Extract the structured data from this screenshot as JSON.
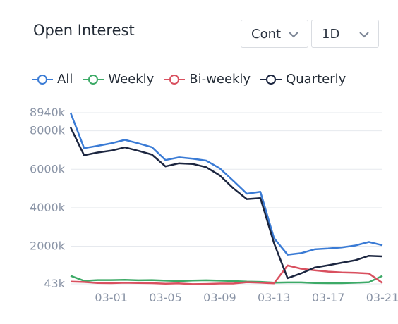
{
  "header": {
    "title": "Open Interest",
    "mode_select": {
      "value": "Cont",
      "icon": "chevron-down-icon"
    },
    "period_select": {
      "value": "1D",
      "icon": "chevron-down-icon"
    }
  },
  "colors": {
    "all": "#3a7bd5",
    "weekly": "#3daa67",
    "biweekly": "#d9505f",
    "quarterly": "#1c2640",
    "grid": "#e6e9ee",
    "tick": "#8a94a6"
  },
  "chart_data": {
    "type": "line",
    "x": [
      "02-27",
      "02-28",
      "02-29",
      "03-01",
      "03-02",
      "03-03",
      "03-04",
      "03-05",
      "03-06",
      "03-07",
      "03-08",
      "03-09",
      "03-10",
      "03-11",
      "03-12",
      "03-13",
      "03-14",
      "03-15",
      "03-16",
      "03-17",
      "03-18",
      "03-19",
      "03-20",
      "03-21"
    ],
    "x_ticks": [
      "03-01",
      "03-05",
      "03-09",
      "03-13",
      "03-17",
      "03-21"
    ],
    "y_ticks": [
      {
        "value": 43,
        "label": "43k"
      },
      {
        "value": 2000,
        "label": "2000k"
      },
      {
        "value": 4000,
        "label": "4000k"
      },
      {
        "value": 6000,
        "label": "6000k"
      },
      {
        "value": 8000,
        "label": "8000k"
      },
      {
        "value": 8940,
        "label": "8940k"
      }
    ],
    "ylim": [
      43,
      8940
    ],
    "grid": true,
    "legend_position": "top",
    "series": [
      {
        "name": "All",
        "color_key": "all",
        "values": [
          8940,
          7100,
          7220,
          7350,
          7530,
          7350,
          7150,
          6480,
          6620,
          6550,
          6450,
          6050,
          5400,
          4730,
          4830,
          2420,
          1560,
          1640,
          1840,
          1880,
          1940,
          2040,
          2220,
          2050
        ]
      },
      {
        "name": "Weekly",
        "color_key": "weekly",
        "values": [
          460,
          200,
          240,
          240,
          250,
          230,
          240,
          210,
          190,
          220,
          230,
          210,
          190,
          160,
          150,
          110,
          120,
          120,
          90,
          80,
          80,
          100,
          130,
          460
        ]
      },
      {
        "name": "Bi-weekly",
        "color_key": "biweekly",
        "values": [
          160,
          140,
          90,
          80,
          100,
          90,
          80,
          50,
          70,
          30,
          40,
          60,
          60,
          130,
          110,
          70,
          1000,
          830,
          750,
          680,
          640,
          620,
          580,
          90
        ]
      },
      {
        "name": "Quarterly",
        "color_key": "quarterly",
        "values": [
          8180,
          6730,
          6870,
          6970,
          7140,
          6960,
          6760,
          6150,
          6310,
          6280,
          6110,
          5680,
          5010,
          4450,
          4500,
          2160,
          340,
          590,
          890,
          1010,
          1140,
          1270,
          1500,
          1470
        ]
      }
    ]
  }
}
